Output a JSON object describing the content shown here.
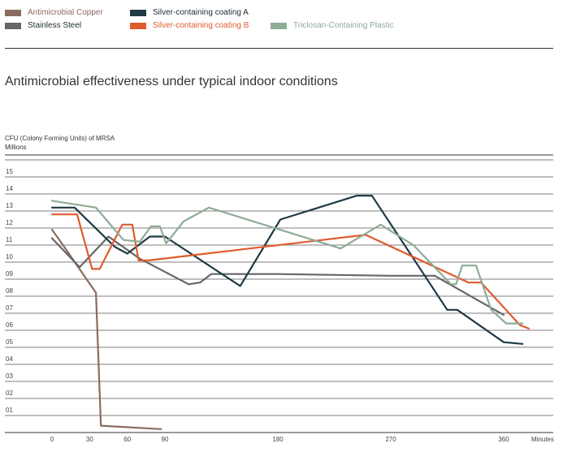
{
  "chart_data": {
    "type": "line",
    "title": "Antimicrobial effectiveness under typical indoor conditions",
    "ylabel": "CFU (Colony Forming Units) of MRSA",
    "ylabel_unit": "Millions",
    "xlabel": "Minutes",
    "x_ticks": [
      0,
      30,
      60,
      90,
      180,
      270,
      360
    ],
    "y_ticks": [
      "01",
      "02",
      "03",
      "04",
      "05",
      "06",
      "07",
      "08",
      "09",
      "10",
      "11",
      "12",
      "13",
      "14",
      "15"
    ],
    "xlim": [
      0,
      385
    ],
    "ylim": [
      0,
      16
    ],
    "series": [
      {
        "name": "Antimicrobial Copper",
        "color": "#8a6b5f",
        "points": [
          [
            0,
            11.9
          ],
          [
            5,
            11.4
          ],
          [
            35,
            8.2
          ],
          [
            39,
            0.4
          ],
          [
            87,
            0.2
          ]
        ]
      },
      {
        "name": "Stainless Steel",
        "color": "#66656a",
        "points": [
          [
            0,
            11.4
          ],
          [
            22,
            9.7
          ],
          [
            45,
            11.5
          ],
          [
            70,
            10.2
          ],
          [
            109,
            8.7
          ],
          [
            118,
            8.8
          ],
          [
            127,
            9.3
          ],
          [
            180,
            9.3
          ],
          [
            270,
            9.2
          ],
          [
            305,
            9.2
          ],
          [
            360,
            6.9
          ]
        ]
      },
      {
        "name": "Silver-containing coating A",
        "color": "#1f3a44",
        "points": [
          [
            0,
            13.2
          ],
          [
            18,
            13.2
          ],
          [
            50,
            10.9
          ],
          [
            60,
            10.5
          ],
          [
            78,
            11.5
          ],
          [
            90,
            11.5
          ],
          [
            150,
            8.6
          ],
          [
            182,
            12.5
          ],
          [
            243,
            13.9
          ],
          [
            255,
            13.9
          ],
          [
            315,
            7.2
          ],
          [
            323,
            7.2
          ],
          [
            360,
            5.3
          ],
          [
            375,
            5.2
          ]
        ]
      },
      {
        "name": "Silver-containing coating B",
        "color": "#e05b2d",
        "points": [
          [
            0,
            12.8
          ],
          [
            20,
            12.8
          ],
          [
            32,
            9.6
          ],
          [
            38,
            9.6
          ],
          [
            56,
            12.2
          ],
          [
            64,
            12.2
          ],
          [
            69,
            10.1
          ],
          [
            77,
            10.1
          ],
          [
            250,
            11.6
          ],
          [
            332,
            8.8
          ],
          [
            342,
            8.8
          ],
          [
            373,
            6.3
          ],
          [
            380,
            6.1
          ]
        ]
      },
      {
        "name": "Triclosan-Containing Plastic",
        "color": "#8eab96",
        "points": [
          [
            0,
            13.6
          ],
          [
            35,
            13.2
          ],
          [
            57,
            11.3
          ],
          [
            70,
            11.2
          ],
          [
            79,
            12.1
          ],
          [
            86,
            12.1
          ],
          [
            91,
            11.1
          ],
          [
            105,
            12.4
          ],
          [
            125,
            13.2
          ],
          [
            230,
            10.8
          ],
          [
            262,
            12.2
          ],
          [
            288,
            11.0
          ],
          [
            318,
            8.7
          ],
          [
            322,
            8.7
          ],
          [
            327,
            9.8
          ],
          [
            338,
            9.8
          ],
          [
            350,
            7.2
          ],
          [
            362,
            6.4
          ],
          [
            375,
            6.4
          ]
        ]
      }
    ]
  }
}
